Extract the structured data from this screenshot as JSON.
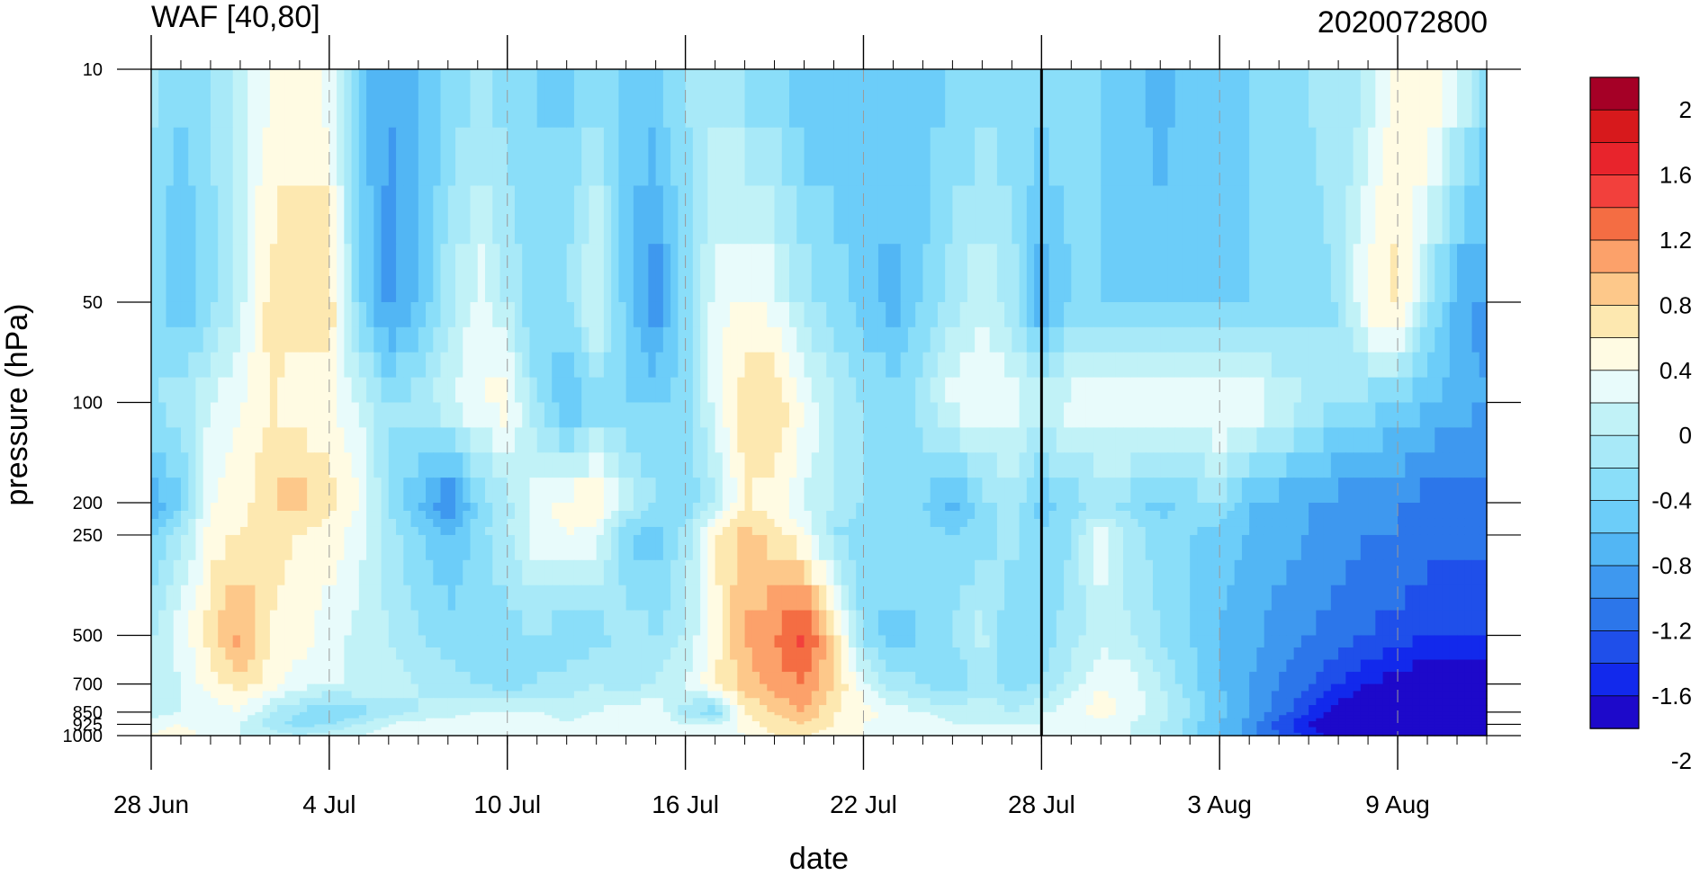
{
  "chart_data": {
    "type": "heatmap",
    "title_left": "WAF [40,80]",
    "title_right": "2020072800",
    "xlabel": "date",
    "ylabel": "pressure (hPa)",
    "x_ticks": [
      "28 Jun",
      "4 Jul",
      "10 Jul",
      "16 Jul",
      "22 Jul",
      "28 Jul",
      "3 Aug",
      "9 Aug"
    ],
    "x_range": [
      "2020-06-28",
      "2020-08-12"
    ],
    "marker_date": "2020-07-28",
    "y_ticks": [
      "10",
      "50",
      "100",
      "200",
      "250",
      "500",
      "700",
      "850",
      "925",
      "1000"
    ],
    "y_scale": "log",
    "y_range": [
      1000,
      10
    ],
    "colorbar_labels": [
      "2",
      "1.6",
      "1.2",
      "0.8",
      "0.4",
      "0",
      "-0.4",
      "-0.8",
      "-1.2",
      "-1.6",
      "-2"
    ],
    "colorbar_colors": [
      "#a50026",
      "#d7191c",
      "#e8242c",
      "#f2403c",
      "#f46d43",
      "#fca16a",
      "#fdc88a",
      "#fde8b0",
      "#fffbe3",
      "#e8fbfb",
      "#c1f2f7",
      "#a8e9f8",
      "#8adef9",
      "#6ccdf9",
      "#52b6f4",
      "#3e98ef",
      "#2c76ea",
      "#1f4fea",
      "#1229ec",
      "#1d09ca"
    ],
    "field": {
      "days": [
        0,
        1,
        2,
        3,
        4,
        5,
        6,
        7,
        8,
        9,
        10,
        11,
        12,
        13,
        14,
        15,
        16,
        17,
        18,
        19,
        20,
        21,
        22,
        23,
        24,
        25,
        26,
        27,
        28,
        29,
        30,
        31,
        32,
        33,
        34,
        35,
        36,
        37,
        38,
        39,
        40,
        41,
        42,
        43,
        44,
        45
      ],
      "levels": [
        10,
        50,
        100,
        200,
        250,
        500,
        700,
        850,
        925,
        1000
      ],
      "values": [
        [
          -0.3,
          -0.6,
          -0.4,
          -0.1,
          0.2,
          0.3,
          0.1,
          -0.7,
          -1.0,
          -0.8,
          -0.6,
          -0.4,
          -0.5,
          -0.6,
          -0.7,
          -0.5,
          -0.7,
          -0.6,
          -0.4,
          -0.3,
          -0.5,
          -0.6,
          -0.8,
          -0.8,
          -0.7,
          -0.6,
          -0.7,
          -0.6,
          -0.6,
          -0.5,
          -0.4,
          -0.5,
          -0.6,
          -0.7,
          -0.9,
          -0.7,
          -0.6,
          -0.6,
          -0.5,
          -0.4,
          -0.3,
          -0.2,
          0.3,
          0.5,
          0.1,
          -0.4
        ],
        [
          -0.5,
          -0.8,
          -0.5,
          -0.1,
          0.5,
          0.5,
          0.6,
          -0.6,
          -1.1,
          -0.8,
          -0.3,
          0.1,
          -0.2,
          -0.6,
          -0.4,
          0.1,
          -0.7,
          -1.2,
          -0.5,
          0.1,
          0.3,
          0.1,
          -0.3,
          -0.5,
          -0.7,
          -0.9,
          -0.6,
          -0.3,
          0.0,
          -0.3,
          -1.0,
          -0.6,
          -0.6,
          -0.7,
          -0.7,
          -0.7,
          -0.6,
          -0.6,
          -0.6,
          -0.5,
          -0.4,
          0.3,
          0.5,
          -0.3,
          -0.9,
          -1.1
        ],
        [
          -0.4,
          -0.3,
          0.0,
          0.2,
          0.4,
          0.3,
          0.2,
          0.0,
          -0.4,
          -0.3,
          0.0,
          0.2,
          0.3,
          -0.4,
          -0.9,
          -0.5,
          -0.6,
          -0.6,
          -0.5,
          0.1,
          0.5,
          0.6,
          0.2,
          -0.2,
          -0.4,
          -0.5,
          -0.3,
          0.1,
          0.2,
          0.1,
          -0.1,
          0.1,
          0.2,
          0.3,
          0.2,
          0.1,
          0.3,
          0.2,
          0.0,
          -0.2,
          -0.4,
          -0.5,
          -0.6,
          -0.8,
          -0.9,
          -1.0
        ],
        [
          -1.0,
          -0.6,
          0.2,
          0.3,
          0.6,
          0.7,
          0.5,
          0.2,
          -0.4,
          -0.8,
          -1.3,
          -0.6,
          -0.3,
          0.1,
          0.3,
          0.4,
          -0.1,
          -0.4,
          -0.6,
          -0.2,
          0.4,
          0.3,
          0.0,
          -0.2,
          -0.4,
          -0.6,
          -0.6,
          -0.9,
          -0.5,
          -0.3,
          -0.7,
          -0.5,
          -0.4,
          -0.5,
          -0.7,
          -0.5,
          -0.4,
          -0.8,
          -0.9,
          -1.0,
          -1.1,
          -1.2,
          -1.2,
          -1.3,
          -1.3,
          -1.3
        ],
        [
          -0.6,
          -0.3,
          0.3,
          0.4,
          0.5,
          0.4,
          0.3,
          0.1,
          -0.3,
          -0.6,
          -0.8,
          -0.5,
          -0.2,
          0.1,
          0.2,
          0.1,
          -0.6,
          -0.7,
          -0.3,
          0.4,
          0.7,
          0.5,
          0.2,
          -0.4,
          -0.6,
          -0.4,
          -0.5,
          -0.6,
          -0.5,
          -0.3,
          -0.6,
          -0.4,
          0.2,
          -0.3,
          -0.5,
          -0.6,
          -0.7,
          -0.8,
          -0.9,
          -1.0,
          -1.1,
          -1.2,
          -1.2,
          -1.3,
          -1.3,
          -1.3
        ],
        [
          -0.2,
          0.1,
          0.5,
          0.9,
          0.4,
          0.3,
          0.1,
          -0.1,
          -0.2,
          -0.4,
          -0.5,
          -0.6,
          -0.5,
          -0.4,
          -0.6,
          -0.5,
          -0.3,
          -0.4,
          -0.2,
          0.3,
          0.8,
          1.0,
          1.3,
          0.6,
          -0.5,
          -0.7,
          -0.6,
          -0.4,
          -0.1,
          -0.6,
          -0.5,
          -0.3,
          -0.1,
          -0.2,
          -0.4,
          -0.6,
          -0.8,
          -0.9,
          -1.1,
          -1.2,
          -1.3,
          -1.4,
          -1.5,
          -1.6,
          -1.6,
          -1.6
        ],
        [
          -0.2,
          0.0,
          0.3,
          0.5,
          0.3,
          0.1,
          0.0,
          0.0,
          -0.1,
          -0.2,
          -0.3,
          -0.4,
          -0.5,
          -0.4,
          -0.3,
          -0.2,
          -0.3,
          -0.2,
          0.0,
          0.4,
          0.7,
          0.9,
          1.0,
          0.6,
          0.1,
          -0.3,
          -0.4,
          -0.6,
          -0.3,
          -0.5,
          -0.4,
          -0.1,
          0.2,
          0.1,
          -0.2,
          -0.5,
          -0.8,
          -1.0,
          -1.2,
          -1.4,
          -1.6,
          -1.8,
          -1.9,
          -2.0,
          -2.0,
          -2.0
        ],
        [
          -0.1,
          0.0,
          0.1,
          0.2,
          -0.2,
          -0.4,
          -0.6,
          -0.5,
          -0.3,
          -0.2,
          -0.1,
          0.0,
          0.0,
          0.0,
          -0.1,
          0.0,
          0.1,
          0.2,
          -0.3,
          -0.6,
          0.4,
          0.6,
          0.8,
          0.4,
          0.3,
          0.1,
          0.0,
          -0.1,
          0.0,
          -0.2,
          0.0,
          0.1,
          0.3,
          0.1,
          -0.1,
          -0.4,
          -0.7,
          -1.0,
          -1.3,
          -1.6,
          -1.9,
          -2.1,
          -2.2,
          -2.2,
          -2.1,
          -2.0
        ],
        [
          0.1,
          0.2,
          0.1,
          0.0,
          -0.3,
          -0.5,
          -0.4,
          -0.2,
          0.0,
          0.1,
          0.1,
          0.2,
          0.1,
          0.1,
          0.0,
          0.1,
          0.1,
          0.1,
          0.0,
          0.0,
          0.3,
          0.5,
          0.6,
          0.4,
          0.2,
          0.1,
          0.1,
          0.0,
          0.0,
          0.0,
          0.0,
          0.1,
          0.1,
          0.0,
          -0.2,
          -0.5,
          -0.8,
          -1.1,
          -1.5,
          -1.8,
          -2.1,
          -2.3,
          -2.3,
          -2.2,
          -2.0,
          -1.9
        ],
        [
          0.2,
          0.3,
          0.1,
          0.0,
          -0.1,
          -0.2,
          -0.1,
          0.0,
          0.1,
          0.1,
          0.2,
          0.2,
          0.1,
          0.1,
          0.0,
          0.1,
          0.1,
          0.0,
          0.0,
          0.1,
          0.2,
          0.4,
          0.4,
          0.3,
          0.2,
          0.1,
          0.1,
          0.0,
          0.0,
          0.0,
          0.1,
          0.1,
          0.1,
          0.0,
          -0.2,
          -0.5,
          -0.8,
          -1.1,
          -1.4,
          -1.7,
          -1.9,
          -2.1,
          -2.1,
          -2.0,
          -1.9,
          -1.8
        ]
      ]
    }
  }
}
